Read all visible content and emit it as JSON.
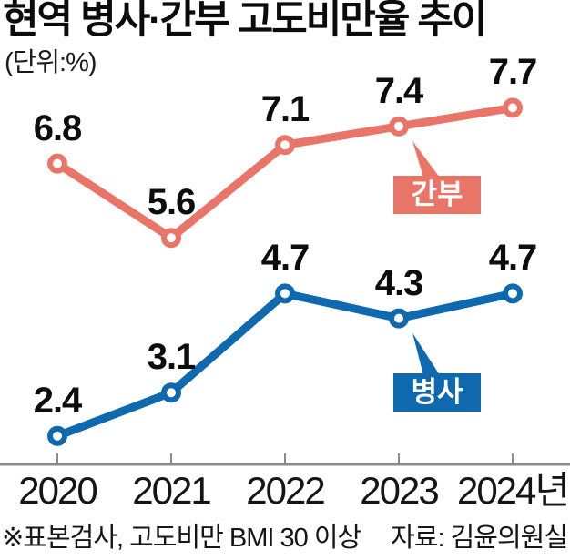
{
  "header": {
    "title": "현역 병사·간부 고도비만율 추이",
    "unit": "(단위:%)"
  },
  "footer": {
    "note": "※표본검사, 고도비만 BMI 30 이상",
    "source": "자료: 김윤의원실"
  },
  "colors": {
    "officer": "#E97568",
    "soldier": "#0F69AF",
    "axis": "#8C8C8C",
    "label_text": "#0d0d0d",
    "background": "#ffffff"
  },
  "chart_data": {
    "type": "line",
    "title": "현역 병사·간부 고도비만율 추이",
    "unit_label": "(단위:%)",
    "categories": [
      "2020",
      "2021",
      "2022",
      "2023",
      "2024년"
    ],
    "series": [
      {
        "name": "간부",
        "key": "officer",
        "color": "#E97568",
        "values": [
          6.8,
          5.6,
          7.1,
          7.4,
          7.7
        ],
        "callout_index": 3
      },
      {
        "name": "병사",
        "key": "soldier",
        "color": "#0F69AF",
        "values": [
          2.4,
          3.1,
          4.7,
          4.3,
          4.7
        ],
        "callout_index": 3
      }
    ],
    "ylim": [
      1.9,
      8.6
    ],
    "grid": false,
    "data_labels": true,
    "legend_position": "inline-callout",
    "footnote": "※표본검사, 고도비만 BMI 30 이상",
    "source": "자료: 김윤의원실"
  }
}
